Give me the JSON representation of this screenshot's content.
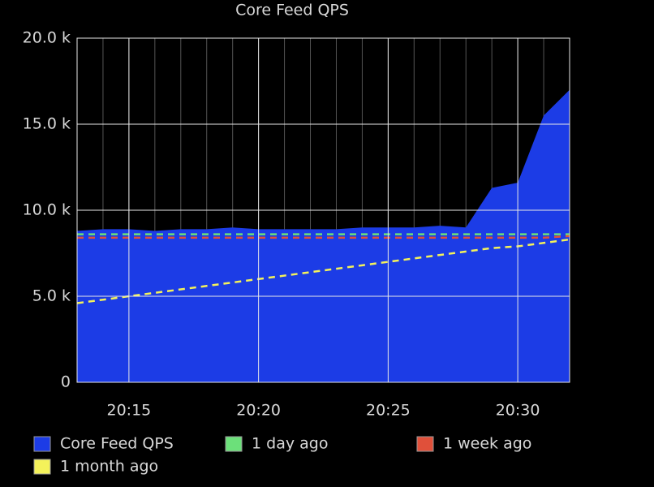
{
  "chart_data": {
    "type": "area",
    "title": "Core Feed QPS",
    "x": [
      "20:13",
      "20:14",
      "20:15",
      "20:16",
      "20:17",
      "20:18",
      "20:19",
      "20:20",
      "20:21",
      "20:22",
      "20:23",
      "20:24",
      "20:25",
      "20:26",
      "20:27",
      "20:28",
      "20:29",
      "20:30",
      "20:31",
      "20:32"
    ],
    "series": [
      {
        "name": "Core Feed QPS",
        "color": "#1c3ce6",
        "style": "area",
        "values": [
          8800,
          8900,
          8900,
          8800,
          8900,
          8900,
          9000,
          8900,
          8900,
          8900,
          8900,
          9000,
          9000,
          9000,
          9100,
          9000,
          11300,
          11600,
          15500,
          17000
        ]
      },
      {
        "name": "1 day ago",
        "color": "#6ce07a",
        "style": "dashed",
        "values": [
          8600,
          8600,
          8600,
          8600,
          8600,
          8600,
          8600,
          8600,
          8600,
          8600,
          8600,
          8600,
          8600,
          8600,
          8600,
          8600,
          8600,
          8600,
          8600,
          8600
        ]
      },
      {
        "name": "1 week ago",
        "color": "#e0503a",
        "style": "dashed",
        "values": [
          8400,
          8400,
          8400,
          8400,
          8400,
          8400,
          8400,
          8400,
          8400,
          8400,
          8400,
          8400,
          8400,
          8400,
          8400,
          8400,
          8400,
          8400,
          8400,
          8500
        ]
      },
      {
        "name": "1 month ago",
        "color": "#f4f25a",
        "style": "dashed",
        "values": [
          4600,
          4800,
          5000,
          5200,
          5400,
          5600,
          5800,
          6000,
          6200,
          6400,
          6600,
          6800,
          7000,
          7200,
          7400,
          7600,
          7800,
          7900,
          8100,
          8300
        ]
      }
    ],
    "xlim": [
      "20:13",
      "20:32"
    ],
    "xticks": [
      "20:15",
      "20:20",
      "20:25",
      "20:30"
    ],
    "ylim": [
      0,
      20000
    ],
    "yticks": [
      0,
      {
        "value": 5000,
        "label": "5.0 k"
      },
      {
        "value": 10000,
        "label": "10.0 k"
      },
      {
        "value": 15000,
        "label": "15.0 k"
      },
      {
        "value": 20000,
        "label": "20.0 k"
      }
    ],
    "grid": true
  }
}
